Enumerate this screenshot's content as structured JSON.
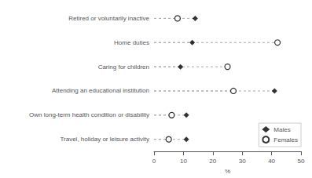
{
  "chart_data": {
    "type": "dot",
    "orientation": "horizontal",
    "categories": [
      "Travel, holiday or leisure activity",
      "Own long-term health condition or disability",
      "Attending an educational institution",
      "Caring for children",
      "Home duties",
      "Retired or voluntarily inactive"
    ],
    "series": [
      {
        "name": "Males",
        "color": "#000000",
        "marker": "diamond",
        "values": [
          11,
          11,
          41,
          9,
          13,
          14
        ]
      },
      {
        "name": "Females",
        "color": "#000000",
        "marker": "circle",
        "values": [
          5,
          6,
          27,
          25,
          42,
          8
        ]
      }
    ],
    "xlabel": "%",
    "xlim": [
      0,
      50
    ],
    "xticks": [
      0,
      10,
      20,
      30,
      40,
      50
    ],
    "grid": false,
    "legend": "lower right"
  }
}
